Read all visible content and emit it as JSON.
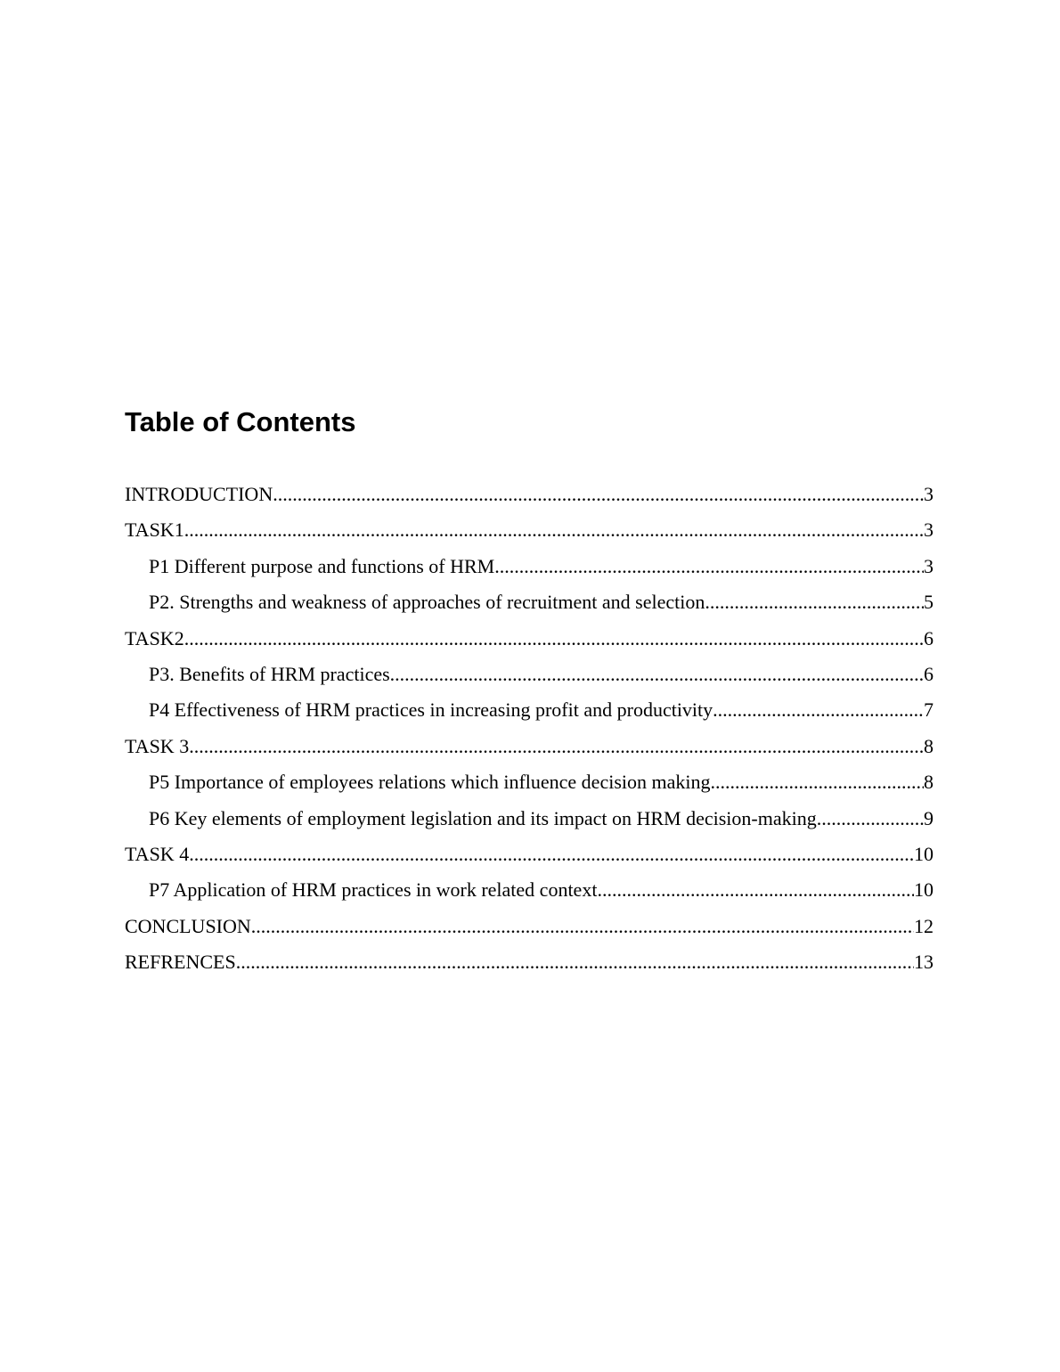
{
  "document": {
    "title": "Table of Contents",
    "text_color": "#000000",
    "background_color": "#ffffff"
  },
  "toc": {
    "entries": [
      {
        "label": "INTRODUCTION",
        "page": "3",
        "level": 0
      },
      {
        "label": "TASK1",
        "page": "3",
        "level": 0
      },
      {
        "label": "P1 Different purpose and functions of HRM",
        "page": "3",
        "level": 1
      },
      {
        "label": "P2. Strengths and weakness of approaches of recruitment and selection",
        "page": "5",
        "level": 1
      },
      {
        "label": "TASK2",
        "page": "6",
        "level": 0
      },
      {
        "label": "P3. Benefits of HRM practices",
        "page": "6",
        "level": 1
      },
      {
        "label": "P4 Effectiveness of HRM practices in increasing profit and productivity",
        "page": "7",
        "level": 1
      },
      {
        "label": "TASK 3",
        "page": "8",
        "level": 0
      },
      {
        "label": "P5 Importance of employees relations which influence decision making",
        "page": "8",
        "level": 1
      },
      {
        "label": "P6 Key elements of employment legislation and its impact on HRM decision-making",
        "page": "9",
        "level": 1
      },
      {
        "label": "TASK 4",
        "page": "10",
        "level": 0
      },
      {
        "label": "P7 Application of HRM practices in work related context",
        "page": "10",
        "level": 1
      },
      {
        "label": "CONCLUSION",
        "page": "12",
        "level": 0
      },
      {
        "label": "REFRENCES",
        "page": "13",
        "level": 0
      }
    ]
  }
}
